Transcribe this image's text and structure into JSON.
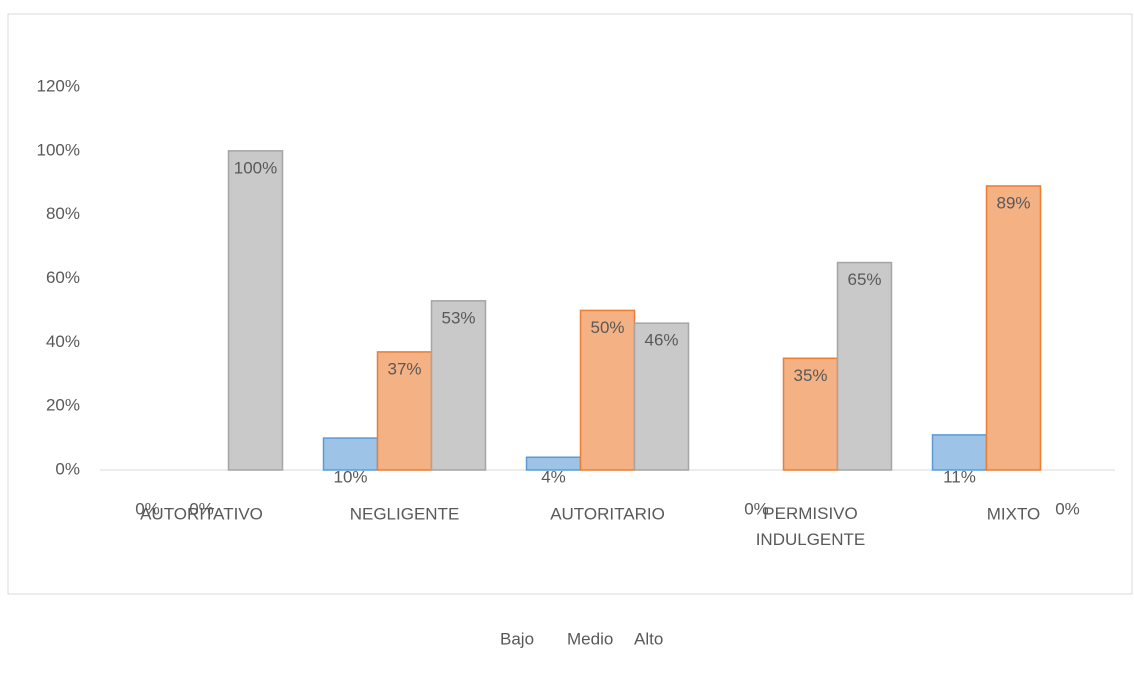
{
  "chart_data": {
    "type": "bar",
    "categories": [
      "AUTORITATIVO",
      "NEGLIGENTE",
      "AUTORITARIO",
      "PERMISIVO INDULGENTE",
      "MIXTO"
    ],
    "series": [
      {
        "name": "Bajo",
        "color": "#9dc3e6",
        "edge": "#5b9bd5",
        "values": [
          0,
          10,
          4,
          0,
          11
        ],
        "value_labels": [
          "0%",
          "10%",
          "4%",
          "0%",
          "11%"
        ]
      },
      {
        "name": "Medio",
        "color": "#f4b183",
        "edge": "#ed7d31",
        "values": [
          0,
          37,
          50,
          35,
          89
        ],
        "value_labels": [
          "0%",
          "37%",
          "50%",
          "35%",
          "89%"
        ]
      },
      {
        "name": "Alto",
        "color": "#c9c9c9",
        "edge": "#a5a5a5",
        "values": [
          100,
          53,
          46,
          65,
          0
        ],
        "value_labels": [
          "100%",
          "53%",
          "46%",
          "65%",
          "0%"
        ]
      }
    ],
    "ylim": [
      0,
      120
    ],
    "yticks": [
      {
        "value": 0,
        "label": "0%"
      },
      {
        "value": 20,
        "label": "20%"
      },
      {
        "value": 40,
        "label": "40%"
      },
      {
        "value": 60,
        "label": "60%"
      },
      {
        "value": 80,
        "label": "80%"
      },
      {
        "value": 100,
        "label": "100%"
      },
      {
        "value": 120,
        "label": "120%"
      }
    ],
    "grid": false,
    "legend": "bottom"
  }
}
